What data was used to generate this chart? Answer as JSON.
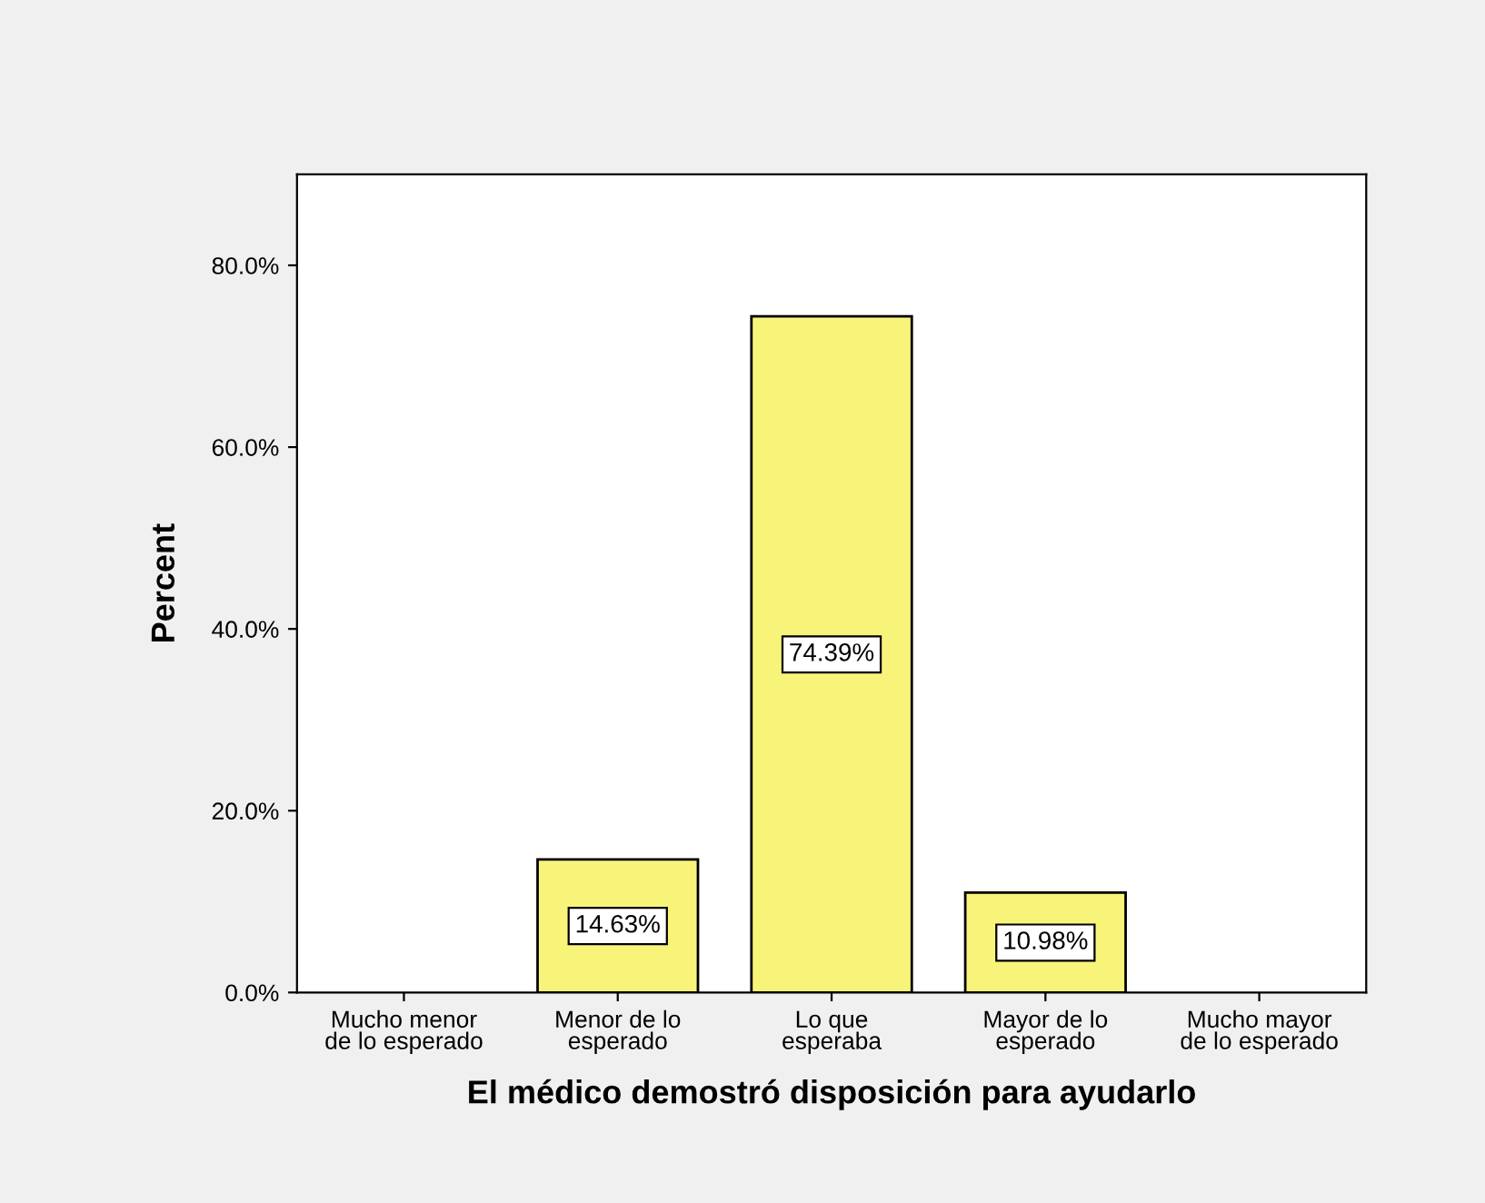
{
  "chart_data": {
    "type": "bar",
    "xlabel": "El médico demostró disposición para ayudarlo",
    "ylabel": "Percent",
    "categories": [
      "Mucho menor\nde lo esperado",
      "Menor de lo\nesperado",
      "Lo que\nesperaba",
      "Mayor de lo\nesperado",
      "Mucho mayor\nde lo esperado"
    ],
    "values": [
      0,
      14.63,
      74.39,
      10.98,
      0
    ],
    "value_labels": [
      null,
      "14.63%",
      "74.39%",
      "10.98%",
      null
    ],
    "color": "#f8f47a",
    "ylim": [
      0,
      90
    ],
    "yticks": [
      {
        "value": 0,
        "label": "0.0%"
      },
      {
        "value": 20,
        "label": "20.0%"
      },
      {
        "value": 40,
        "label": "40.0%"
      },
      {
        "value": 60,
        "label": "60.0%"
      },
      {
        "value": 80,
        "label": "80.0%"
      }
    ],
    "grid": false,
    "legend": false
  }
}
